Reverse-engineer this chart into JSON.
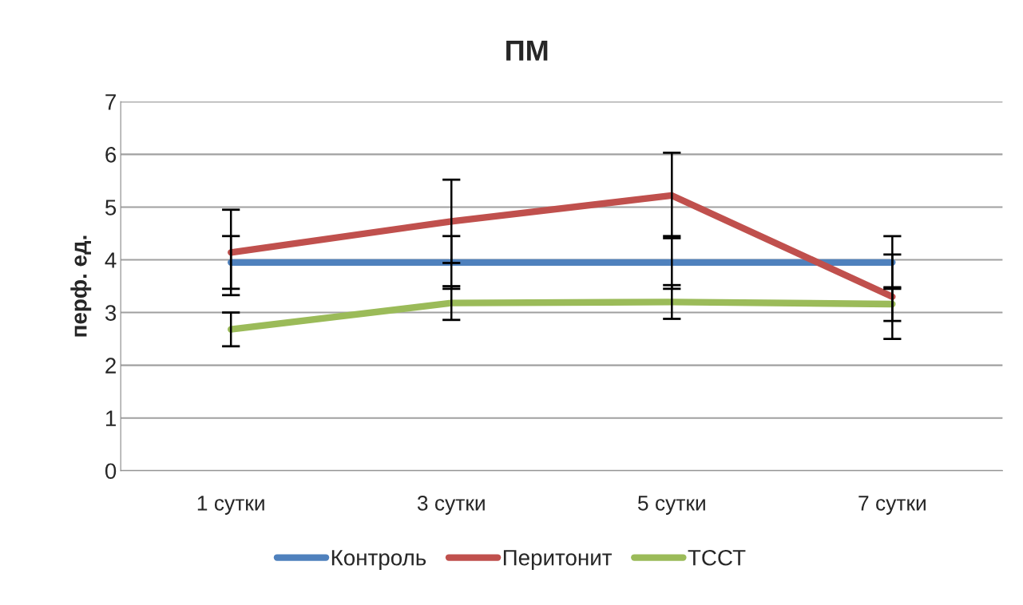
{
  "chart_data": {
    "type": "line",
    "title": "ПМ",
    "ylabel": "перф. ед.",
    "categories": [
      "1 сутки",
      "3 сутки",
      "5 сутки",
      "7 сутки"
    ],
    "series": [
      {
        "name": "Контроль",
        "color": "#4f81bd",
        "values": [
          3.95,
          3.95,
          3.95,
          3.95
        ],
        "errors": [
          0.5,
          0.5,
          0.5,
          0.5
        ]
      },
      {
        "name": "Перитонит",
        "color": "#c0504d",
        "values": [
          4.14,
          4.73,
          5.22,
          3.3
        ],
        "errors": [
          0.81,
          0.79,
          0.81,
          0.8
        ]
      },
      {
        "name": "ТССТ",
        "color": "#9bbb59",
        "values": [
          2.68,
          3.18,
          3.2,
          3.16
        ],
        "errors": [
          0.32,
          0.32,
          0.32,
          0.32
        ]
      }
    ],
    "ylim": [
      0,
      7
    ],
    "yticks": [
      0,
      1,
      2,
      3,
      4,
      5,
      6,
      7
    ],
    "grid": "y",
    "legend": "bottom",
    "marker": "none",
    "line_style": "solid"
  }
}
